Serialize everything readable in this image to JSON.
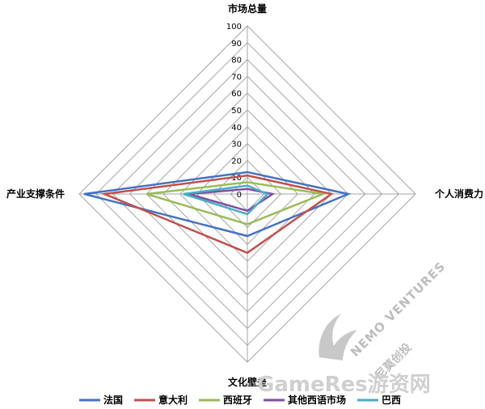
{
  "chart_data": {
    "type": "radar",
    "axes": [
      "市场总量",
      "个人消费力",
      "文化壁垒",
      "产业支撑条件"
    ],
    "ticks": [
      0,
      10,
      20,
      30,
      40,
      50,
      60,
      70,
      80,
      90,
      100
    ],
    "rlim": [
      0,
      100
    ],
    "series": [
      {
        "name": "法国",
        "color": "#4472c4",
        "values": [
          13,
          60,
          25,
          97
        ]
      },
      {
        "name": "意大利",
        "color": "#c0504d",
        "values": [
          11,
          50,
          35,
          85
        ]
      },
      {
        "name": "西班牙",
        "color": "#9bbb59",
        "values": [
          7,
          45,
          18,
          60
        ]
      },
      {
        "name": "其他西语市场",
        "color": "#7f4f9f",
        "values": [
          3,
          15,
          10,
          35
        ]
      },
      {
        "name": "巴西",
        "color": "#4bacc6",
        "values": [
          5,
          12,
          12,
          38
        ]
      }
    ],
    "grid": true,
    "legend_position": "bottom"
  },
  "watermarks": {
    "logo_text": "NEMO VENTURES",
    "logo_cn": "尼莫创投",
    "site_text": "GameRes游资网"
  }
}
